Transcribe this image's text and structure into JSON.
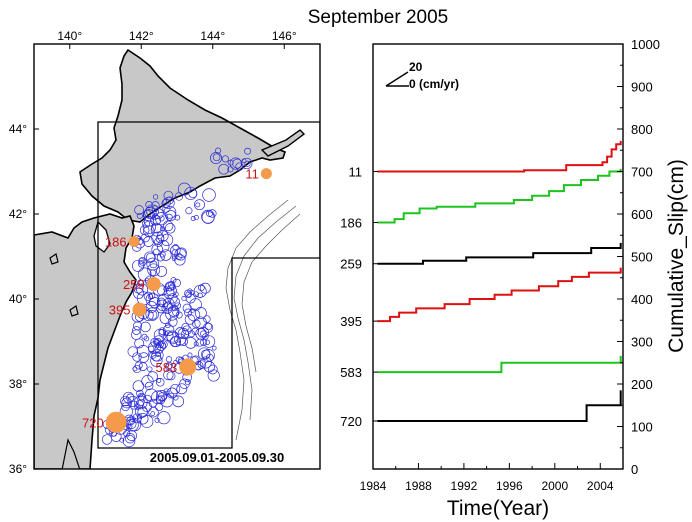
{
  "figure": {
    "title": "September 2005"
  },
  "map": {
    "lon_ticks": [
      "140°",
      "142°",
      "144°",
      "146°"
    ],
    "lat_ticks": [
      "44°",
      "42°",
      "40°",
      "38°",
      "36°"
    ],
    "date_range_label": "2005.09.01-2005.09.30",
    "land_color": "#c8c8c8",
    "event_circle_color": "#2b2bd6",
    "marker_color": "#f59a4b",
    "station_label_color": "#cc1111",
    "stations": [
      {
        "id": "11",
        "label": "11",
        "lon": 145.5,
        "lat": 42.95,
        "size": "small"
      },
      {
        "id": "186",
        "label": "186",
        "lon": 141.8,
        "lat": 41.35,
        "size": "small"
      },
      {
        "id": "259",
        "label": "259",
        "lon": 142.35,
        "lat": 40.35,
        "size": "medium"
      },
      {
        "id": "395",
        "label": "395",
        "lon": 141.95,
        "lat": 39.75,
        "size": "medium"
      },
      {
        "id": "583",
        "label": "583",
        "lon": 143.3,
        "lat": 38.4,
        "size": "large"
      },
      {
        "id": "720",
        "label": "720",
        "lon": 141.3,
        "lat": 37.1,
        "size": "xlarge"
      }
    ]
  },
  "chart_data": {
    "type": "line",
    "xlabel": "Time(Year)",
    "ylabel": "Cumulative_Slip(cm)",
    "xlim": [
      1984,
      2006
    ],
    "ylim": [
      0,
      1000
    ],
    "x_ticks": [
      "1984",
      "1988",
      "1992",
      "1996",
      "2000",
      "2004"
    ],
    "y_ticks": [
      "0",
      "100",
      "200",
      "300",
      "400",
      "500",
      "600",
      "700",
      "800",
      "900",
      "1000"
    ],
    "left_labels": [
      "11",
      "186",
      "259",
      "395",
      "583",
      "720"
    ],
    "scale_arrow": {
      "value_label": "20",
      "unit_label": "0 (cm/yr)"
    },
    "series": [
      {
        "name": "11",
        "color": "#dd1111",
        "points": [
          [
            1984.4,
            700
          ],
          [
            1997.3,
            700
          ],
          [
            1997.3,
            703
          ],
          [
            2001,
            703
          ],
          [
            2001,
            715
          ],
          [
            2004.2,
            715
          ],
          [
            2004.2,
            722
          ],
          [
            2004.6,
            722
          ],
          [
            2004.6,
            735
          ],
          [
            2005,
            735
          ],
          [
            2005,
            752
          ],
          [
            2005.4,
            752
          ],
          [
            2005.4,
            764
          ],
          [
            2005.8,
            764
          ],
          [
            2005.8,
            772
          ]
        ]
      },
      {
        "name": "186",
        "color": "#1ec41e",
        "points": [
          [
            1984.4,
            580
          ],
          [
            1985.9,
            580
          ],
          [
            1985.9,
            588
          ],
          [
            1986.7,
            588
          ],
          [
            1986.7,
            602
          ],
          [
            1988.1,
            602
          ],
          [
            1988.1,
            613
          ],
          [
            1989.6,
            613
          ],
          [
            1989.6,
            617
          ],
          [
            1993,
            617
          ],
          [
            1993,
            625
          ],
          [
            1996.4,
            625
          ],
          [
            1996.4,
            633
          ],
          [
            1998,
            633
          ],
          [
            1998,
            643
          ],
          [
            1999.5,
            643
          ],
          [
            1999.5,
            654
          ],
          [
            2000.8,
            654
          ],
          [
            2000.8,
            668
          ],
          [
            2002.3,
            668
          ],
          [
            2002.3,
            680
          ],
          [
            2003.8,
            680
          ],
          [
            2003.8,
            690
          ],
          [
            2004.8,
            690
          ],
          [
            2004.8,
            700
          ],
          [
            2005.8,
            700
          ],
          [
            2005.8,
            706
          ]
        ]
      },
      {
        "name": "259",
        "color": "#000000",
        "points": [
          [
            1984.4,
            483
          ],
          [
            1988.4,
            483
          ],
          [
            1988.4,
            490
          ],
          [
            1992.2,
            490
          ],
          [
            1992.2,
            498
          ],
          [
            1998.1,
            498
          ],
          [
            1998.1,
            508
          ],
          [
            2003.2,
            508
          ],
          [
            2003.2,
            520
          ],
          [
            2005.8,
            520
          ],
          [
            2005.8,
            532
          ]
        ]
      },
      {
        "name": "395",
        "color": "#dd1111",
        "points": [
          [
            1984.4,
            348
          ],
          [
            1985.5,
            348
          ],
          [
            1985.5,
            358
          ],
          [
            1986.3,
            358
          ],
          [
            1986.3,
            368
          ],
          [
            1987.8,
            368
          ],
          [
            1987.8,
            378
          ],
          [
            1990.3,
            378
          ],
          [
            1990.3,
            388
          ],
          [
            1992.5,
            388
          ],
          [
            1992.5,
            400
          ],
          [
            1994.7,
            400
          ],
          [
            1994.7,
            410
          ],
          [
            1996.2,
            410
          ],
          [
            1996.2,
            420
          ],
          [
            1998.6,
            420
          ],
          [
            1998.6,
            430
          ],
          [
            2000.3,
            430
          ],
          [
            2000.3,
            442
          ],
          [
            2001.5,
            442
          ],
          [
            2001.5,
            452
          ],
          [
            2003,
            452
          ],
          [
            2003,
            462
          ],
          [
            2005.8,
            462
          ],
          [
            2005.8,
            474
          ]
        ]
      },
      {
        "name": "583",
        "color": "#1ec41e",
        "points": [
          [
            1984.4,
            228
          ],
          [
            1995.3,
            228
          ],
          [
            1995.3,
            250
          ],
          [
            2005.8,
            250
          ],
          [
            2005.8,
            266
          ]
        ]
      },
      {
        "name": "720",
        "color": "#000000",
        "points": [
          [
            1984.4,
            113
          ],
          [
            2002.8,
            113
          ],
          [
            2002.8,
            150
          ],
          [
            2005.8,
            150
          ],
          [
            2005.8,
            185
          ]
        ]
      }
    ]
  }
}
